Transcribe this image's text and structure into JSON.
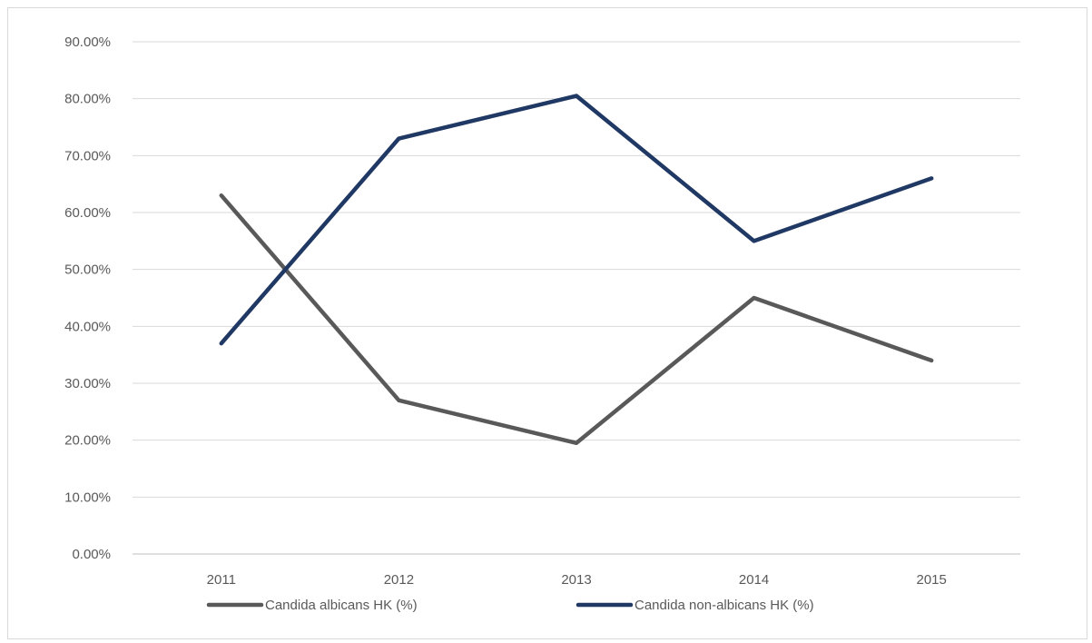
{
  "chart_data": {
    "type": "line",
    "title": "",
    "xlabel": "",
    "ylabel": "",
    "categories": [
      "2011",
      "2012",
      "2013",
      "2014",
      "2015"
    ],
    "y_ticks": [
      "0.00%",
      "10.00%",
      "20.00%",
      "30.00%",
      "40.00%",
      "50.00%",
      "60.00%",
      "70.00%",
      "80.00%",
      "90.00%"
    ],
    "ylim": [
      0,
      90
    ],
    "grid": true,
    "legend_position": "bottom",
    "series": [
      {
        "name": "Candida albicans HK (%)",
        "color": "#595959",
        "values": [
          63,
          27,
          19.5,
          45,
          34
        ]
      },
      {
        "name": "Candida non-albicans HK (%)",
        "color": "#203864",
        "values": [
          37,
          73,
          80.5,
          55,
          66
        ]
      }
    ]
  }
}
